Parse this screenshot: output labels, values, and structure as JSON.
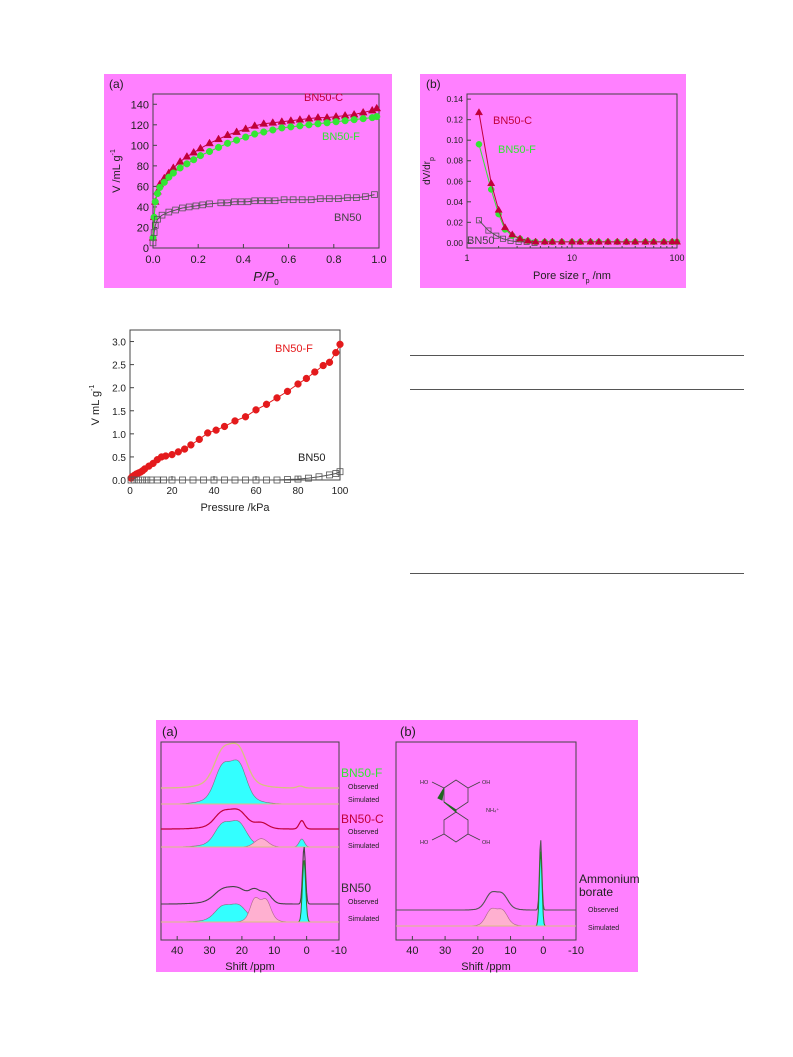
{
  "colors": {
    "panel_bg": "#ff80ff",
    "bn50c": "#c0003a",
    "bn50f": "#33e633",
    "bn50": "#555555",
    "bn50f_fill": "#e41a1c",
    "cyan_fill": "#33ffff",
    "pink_fill": "#ffb0d0"
  },
  "chart_data": [
    {
      "id": "isotherm",
      "type": "scatter",
      "panel_label": "(a)",
      "xlabel": "P/P",
      "xlabel_sub": "0",
      "ylabel": "V /mL g",
      "ylabel_sup": "-1",
      "xlim": [
        0,
        1.0
      ],
      "ylim": [
        0,
        150
      ],
      "xticks": [
        "0.0",
        "0.2",
        "0.4",
        "0.6",
        "0.8",
        "1.0"
      ],
      "yticks": [
        "0",
        "20",
        "40",
        "60",
        "80",
        "100",
        "120",
        "140"
      ],
      "xtick_values": [
        0,
        0.2,
        0.4,
        0.6,
        0.8,
        1.0
      ],
      "ytick_values": [
        0,
        20,
        40,
        60,
        80,
        100,
        120,
        140
      ],
      "series": [
        {
          "name": "BN50-C",
          "marker": "triangle",
          "x": [
            0.0,
            0.005,
            0.01,
            0.02,
            0.03,
            0.05,
            0.07,
            0.09,
            0.12,
            0.15,
            0.18,
            0.21,
            0.25,
            0.29,
            0.33,
            0.37,
            0.41,
            0.45,
            0.49,
            0.53,
            0.57,
            0.61,
            0.65,
            0.69,
            0.73,
            0.77,
            0.81,
            0.85,
            0.89,
            0.93,
            0.97,
            0.99
          ],
          "y": [
            10,
            30,
            45,
            55,
            62,
            68,
            73,
            78,
            84,
            89,
            93,
            97,
            102,
            106,
            110,
            113,
            116,
            119,
            121,
            122,
            123,
            124,
            125,
            126,
            127,
            127,
            128,
            129,
            130,
            132,
            134,
            136
          ]
        },
        {
          "name": "BN50-F",
          "marker": "circle",
          "x": [
            0.0,
            0.005,
            0.01,
            0.02,
            0.03,
            0.05,
            0.07,
            0.09,
            0.12,
            0.15,
            0.18,
            0.21,
            0.25,
            0.29,
            0.33,
            0.37,
            0.41,
            0.45,
            0.49,
            0.53,
            0.57,
            0.61,
            0.65,
            0.69,
            0.73,
            0.77,
            0.81,
            0.85,
            0.89,
            0.93,
            0.97,
            0.99
          ],
          "y": [
            10,
            30,
            45,
            53,
            59,
            64,
            69,
            73,
            78,
            82,
            86,
            90,
            94,
            98,
            102,
            105,
            108,
            111,
            113,
            115,
            117,
            118,
            119,
            120,
            121,
            122,
            123,
            124,
            125,
            126,
            127,
            128
          ]
        },
        {
          "name": "BN50",
          "marker": "square-open",
          "x": [
            0.0,
            0.005,
            0.01,
            0.02,
            0.04,
            0.07,
            0.1,
            0.13,
            0.16,
            0.19,
            0.22,
            0.25,
            0.3,
            0.33,
            0.36,
            0.39,
            0.42,
            0.45,
            0.48,
            0.51,
            0.54,
            0.58,
            0.62,
            0.66,
            0.7,
            0.74,
            0.78,
            0.82,
            0.86,
            0.9,
            0.94,
            0.98
          ],
          "y": [
            5,
            15,
            22,
            28,
            32,
            35,
            37,
            39,
            40,
            41,
            42,
            43,
            44,
            44,
            45,
            45,
            45,
            46,
            46,
            46,
            46,
            47,
            47,
            47,
            47,
            48,
            48,
            48,
            49,
            49,
            50,
            52
          ]
        }
      ]
    },
    {
      "id": "psd",
      "type": "line",
      "panel_label": "(b)",
      "xlabel": "Pore size r",
      "xlabel_sub": "p",
      "xlabel_tail": " /nm",
      "ylabel": "dV/dr",
      "ylabel_sub": "p",
      "xscale": "log",
      "xlim": [
        1,
        100
      ],
      "ylim": [
        -0.005,
        0.145
      ],
      "xticks": [
        "1",
        "10",
        "100"
      ],
      "xtick_values": [
        1,
        10,
        100
      ],
      "yticks": [
        "0.00",
        "0.02",
        "0.04",
        "0.06",
        "0.08",
        "0.10",
        "0.12",
        "0.14"
      ],
      "ytick_values": [
        0,
        0.02,
        0.04,
        0.06,
        0.08,
        0.1,
        0.12,
        0.14
      ],
      "series": [
        {
          "name": "BN50-C",
          "marker": "triangle",
          "x": [
            1.3,
            1.7,
            2.0,
            2.3,
            2.7,
            3.2,
            3.8,
            4.5,
            5.5,
            6.5,
            8,
            10,
            12,
            15,
            18,
            22,
            27,
            33,
            40,
            50,
            60,
            75,
            90,
            100
          ],
          "y": [
            0.127,
            0.058,
            0.032,
            0.015,
            0.008,
            0.004,
            0.002,
            0.001,
            0.001,
            0.001,
            0.001,
            0.001,
            0.001,
            0.001,
            0.001,
            0.001,
            0.001,
            0.001,
            0.001,
            0.001,
            0.001,
            0.001,
            0.001,
            0.001
          ]
        },
        {
          "name": "BN50-F",
          "marker": "circle",
          "x": [
            1.3,
            1.7,
            2.0,
            2.3,
            2.7,
            3.2,
            3.8,
            4.5,
            5.5,
            6.5,
            8,
            10,
            12,
            15,
            18,
            22,
            27,
            33,
            40,
            50,
            60,
            75,
            90,
            100
          ],
          "y": [
            0.096,
            0.052,
            0.028,
            0.013,
            0.007,
            0.004,
            0.002,
            0.001,
            0.001,
            0.001,
            0.001,
            0.001,
            0.001,
            0.001,
            0.001,
            0.001,
            0.001,
            0.001,
            0.001,
            0.001,
            0.001,
            0.001,
            0.001,
            0.001
          ]
        },
        {
          "name": "BN50",
          "marker": "square-open",
          "x": [
            1.3,
            1.6,
            1.9,
            2.2,
            2.6,
            3.1,
            3.7,
            4.4
          ],
          "y": [
            0.022,
            0.012,
            0.007,
            0.004,
            0.002,
            0.001,
            0.001,
            0.0
          ]
        }
      ]
    },
    {
      "id": "h2",
      "type": "scatter",
      "xlabel": "Pressure /kPa",
      "ylabel": "V mL g",
      "ylabel_sup": "-1",
      "xlim": [
        0,
        100
      ],
      "ylim": [
        0,
        3.25
      ],
      "xticks": [
        "0",
        "20",
        "40",
        "60",
        "80",
        "100"
      ],
      "xtick_values": [
        0,
        20,
        40,
        60,
        80,
        100
      ],
      "yticks": [
        "0.0",
        "0.5",
        "1.0",
        "1.5",
        "2.0",
        "2.5",
        "3.0"
      ],
      "ytick_values": [
        0,
        0.5,
        1.0,
        1.5,
        2.0,
        2.5,
        3.0
      ],
      "series": [
        {
          "name": "BN50-F",
          "marker": "circle",
          "x": [
            0.5,
            1,
            2,
            3,
            4,
            5,
            6,
            7,
            9,
            11,
            13,
            15,
            17,
            20,
            23,
            26,
            29,
            33,
            37,
            41,
            45,
            50,
            55,
            60,
            65,
            70,
            75,
            80,
            84,
            88,
            92,
            95,
            98,
            100
          ],
          "y": [
            0.04,
            0.07,
            0.1,
            0.13,
            0.15,
            0.17,
            0.2,
            0.24,
            0.3,
            0.36,
            0.44,
            0.5,
            0.52,
            0.55,
            0.61,
            0.67,
            0.76,
            0.88,
            1.02,
            1.08,
            1.16,
            1.28,
            1.37,
            1.52,
            1.64,
            1.78,
            1.92,
            2.08,
            2.2,
            2.34,
            2.48,
            2.55,
            2.76,
            2.94
          ]
        },
        {
          "name": "BN50",
          "marker": "square-open",
          "x": [
            0.5,
            2,
            4,
            6,
            8,
            10,
            13,
            16,
            20,
            25,
            30,
            35,
            40,
            45,
            50,
            55,
            60,
            65,
            70,
            75,
            80,
            85,
            90,
            95,
            98,
            100
          ],
          "y": [
            0,
            0,
            0,
            0,
            0,
            0,
            0,
            0,
            0,
            0,
            0,
            0,
            0,
            0,
            0,
            0,
            0,
            0,
            0,
            0.01,
            0.02,
            0.04,
            0.07,
            0.11,
            0.14,
            0.18
          ]
        }
      ]
    },
    {
      "id": "nmr_a",
      "type": "line",
      "panel_label": "(a)",
      "xlabel": "Shift /ppm",
      "xlim": [
        45,
        -10
      ],
      "xticks": [
        "40",
        "30",
        "20",
        "10",
        "0",
        "-10"
      ],
      "xtick_values": [
        40,
        30,
        20,
        10,
        0,
        -10
      ],
      "groups": [
        {
          "name": "BN50-F",
          "observed_label": "Observed",
          "simulated_label": "Simulated"
        },
        {
          "name": "BN50-C",
          "observed_label": "Observed",
          "simulated_label": "Simulated"
        },
        {
          "name": "BN50",
          "observed_label": "Observed",
          "simulated_label": "Simulated"
        }
      ]
    },
    {
      "id": "nmr_b",
      "type": "line",
      "panel_label": "(b)",
      "xlabel": "Shift /ppm",
      "xlim": [
        45,
        -10
      ],
      "xticks": [
        "40",
        "30",
        "20",
        "10",
        "0",
        "-10"
      ],
      "xtick_values": [
        40,
        30,
        20,
        10,
        0,
        -10
      ],
      "sample_label_1": "Ammonium",
      "sample_label_2": "borate",
      "observed_label": "Observed",
      "simulated_label": "Simulated",
      "structure_labels": [
        "HO",
        "OH",
        "NH₄⁺",
        "HO",
        "OH"
      ]
    }
  ]
}
